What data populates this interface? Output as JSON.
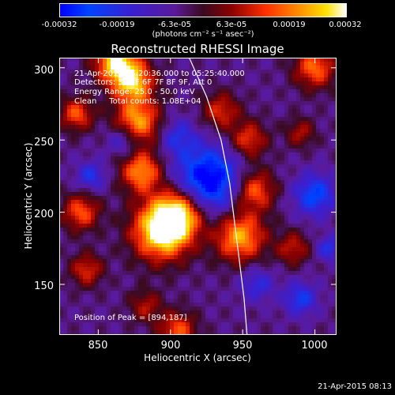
{
  "colorbar": {
    "ticks": [
      "-0.00032",
      "-0.00019",
      "-6.3e-05",
      "6.3e-05",
      "0.00019",
      "0.00032"
    ],
    "label": "(photons cm⁻² s⁻¹ asec⁻²)"
  },
  "chart_data": {
    "type": "heatmap",
    "title": "Reconstructed RHESSI Image",
    "xlabel": "Heliocentric X (arcsec)",
    "ylabel": "Heliocentric Y (arcsec)",
    "xlim": [
      823,
      1015
    ],
    "ylim": [
      115,
      307
    ],
    "xticks": [
      "850",
      "900",
      "950",
      "1000"
    ],
    "yticks": [
      "150",
      "200",
      "250",
      "300"
    ],
    "annotations": {
      "time_range": "21-Apr-2015 05:20:36.000 to 05:25:40.000",
      "detectors": "Detectors: 3F 5F 6F 7F 8F 9F, Att 0",
      "energy": "Energy Range: 25.0 - 50.0 keV",
      "clean": "Clean     Total counts: 1.08E+04",
      "peak": "Position of Peak = [894,187]"
    },
    "peak": [
      894,
      187
    ],
    "limb_curve": [
      [
        913,
        307
      ],
      [
        925,
        280
      ],
      [
        935,
        250
      ],
      [
        941,
        220
      ],
      [
        946,
        180
      ],
      [
        951,
        140
      ],
      [
        953,
        115
      ]
    ]
  },
  "timestamp": "21-Apr-2015 08:13"
}
